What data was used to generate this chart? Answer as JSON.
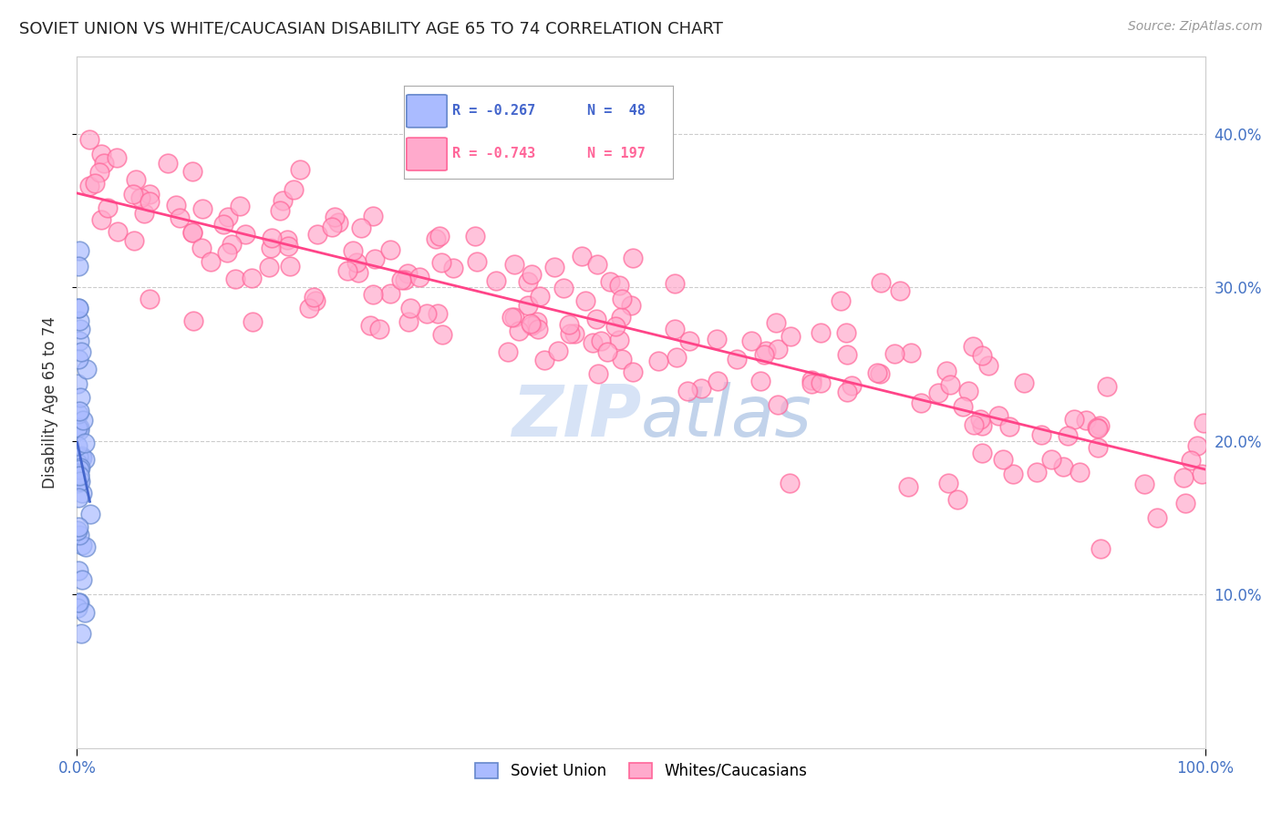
{
  "title": "SOVIET UNION VS WHITE/CAUCASIAN DISABILITY AGE 65 TO 74 CORRELATION CHART",
  "source": "Source: ZipAtlas.com",
  "ylabel": "Disability Age 65 to 74",
  "xlim": [
    0,
    1.0
  ],
  "ylim": [
    0,
    0.45
  ],
  "yticks": [
    0.1,
    0.2,
    0.3,
    0.4
  ],
  "background_color": "#ffffff",
  "grid_color": "#cccccc",
  "title_fontsize": 13,
  "axis_tick_color": "#4472c4",
  "soviet_color": "#aabbff",
  "soviet_edge_color": "#6688cc",
  "white_color": "#ffaacc",
  "white_edge_color": "#ff6699",
  "soviet_R": -0.267,
  "soviet_N": 48,
  "white_R": -0.743,
  "white_N": 197,
  "soviet_line_color": "#4466cc",
  "white_line_color": "#ff4488",
  "watermark_color": "#d0dff5",
  "legend_border_color": "#aaaaaa"
}
